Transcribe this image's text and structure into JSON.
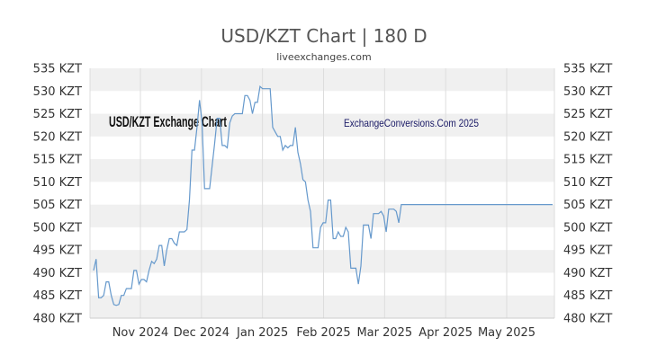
{
  "chart_data": {
    "type": "line",
    "title": "USD/KZT Chart | 180 D",
    "subtitle": "liveexchanges.com",
    "watermarks": [
      "USD/KZT Exchange Chart",
      "ExchangeConversions.Com 2025"
    ],
    "ylim": [
      480,
      535
    ],
    "y_ticks": [
      "480 KZT",
      "485 KZT",
      "490 KZT",
      "495 KZT",
      "500 KZT",
      "505 KZT",
      "510 KZT",
      "515 KZT",
      "520 KZT",
      "525 KZT",
      "530 KZT",
      "535 KZT"
    ],
    "x_ticks": [
      "Nov 2024",
      "Dec 2024",
      "Jan 2025",
      "Feb 2025",
      "Mar 2025",
      "Apr 2025",
      "May 2025"
    ],
    "grid": true,
    "line_color": "#6699cc",
    "series": [
      {
        "values": [
          490.5,
          493,
          484.5,
          484.5,
          485,
          488,
          488,
          485,
          483,
          482.8,
          483,
          485,
          485,
          486.5,
          486.5,
          486.5,
          490.5,
          490.5,
          487.5,
          488.5,
          488.5,
          488,
          490.5,
          492.5,
          492,
          493,
          496,
          496,
          491.5,
          495,
          497.5,
          497.5,
          496.5,
          496,
          499,
          499,
          499,
          499.5,
          506,
          517,
          517,
          522,
          528,
          523,
          508.5,
          508.5,
          508.5,
          513.5,
          518.5,
          524,
          524,
          518,
          518,
          517.5,
          523,
          524.5,
          525,
          525,
          525,
          525,
          529,
          529,
          528,
          525,
          527.5,
          527.5,
          531,
          530.5,
          530.5,
          530.5,
          530.5,
          522,
          521,
          520,
          520,
          517,
          518,
          517.5,
          518,
          518,
          522,
          516.5,
          514,
          510.5,
          510,
          506,
          503.5,
          495.5,
          495.5,
          495.5,
          500,
          501,
          501,
          506,
          506,
          497.5,
          497.5,
          499,
          498,
          498,
          500,
          499,
          491,
          491,
          491,
          487.5,
          491.5,
          500.5,
          500.5,
          500.5,
          497.5,
          503,
          503,
          503,
          503.5,
          502.5,
          499,
          504,
          504,
          504,
          503.5,
          501,
          505,
          505,
          505,
          505,
          505,
          505,
          505,
          505,
          505,
          505,
          505,
          505,
          505,
          505,
          505,
          505,
          505,
          505,
          505,
          505,
          505,
          505,
          505,
          505,
          505,
          505,
          505,
          505,
          505,
          505,
          505,
          505,
          505,
          505,
          505,
          505,
          505,
          505,
          505,
          505,
          505,
          505,
          505,
          505,
          505,
          505,
          505,
          505,
          505,
          505,
          505,
          505,
          505,
          505,
          505,
          505,
          505,
          505,
          505,
          505,
          505
        ]
      }
    ]
  }
}
